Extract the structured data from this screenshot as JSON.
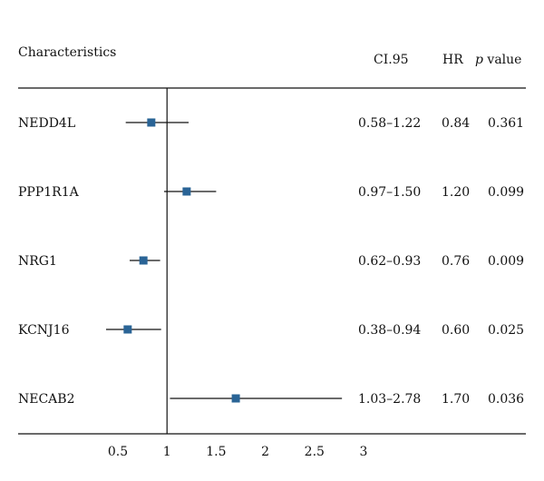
{
  "chart_data": {
    "type": "forest",
    "headers": {
      "characteristics": "Characteristics",
      "ci": "CI.95",
      "hr": "HR",
      "p_italic": "p",
      "p_rest": " value"
    },
    "rows": [
      {
        "name": "NEDD4L",
        "ci_text": "0.58–1.22",
        "hr_text": "0.84",
        "p_text": "0.361",
        "hr": 0.84,
        "lo": 0.58,
        "hi": 1.22
      },
      {
        "name": "PPP1R1A",
        "ci_text": "0.97–1.50",
        "hr_text": "1.20",
        "p_text": "0.099",
        "hr": 1.2,
        "lo": 0.97,
        "hi": 1.5
      },
      {
        "name": "NRG1",
        "ci_text": "0.62–0.93",
        "hr_text": "0.76",
        "p_text": "0.009",
        "hr": 0.76,
        "lo": 0.62,
        "hi": 0.93
      },
      {
        "name": "KCNJ16",
        "ci_text": "0.38–0.94",
        "hr_text": "0.60",
        "p_text": "0.025",
        "hr": 0.6,
        "lo": 0.38,
        "hi": 0.94
      },
      {
        "name": "NECAB2",
        "ci_text": "1.03–2.78",
        "hr_text": "1.70",
        "p_text": "0.036",
        "hr": 1.7,
        "lo": 1.03,
        "hi": 2.78
      }
    ],
    "x_ticks": [
      0.5,
      1,
      1.5,
      2,
      2.5,
      3
    ],
    "x_tick_labels": [
      "0.5",
      "1",
      "1.5",
      "2",
      "2.5",
      "3"
    ],
    "reference_line": 1,
    "marker_color": "#2a6496",
    "line_color": "#111111"
  }
}
